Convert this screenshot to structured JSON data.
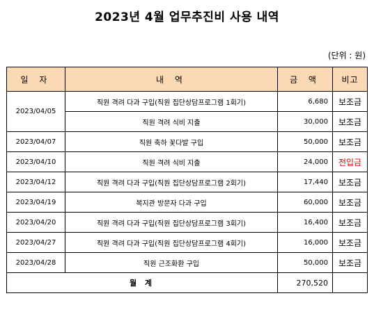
{
  "title": "2023년 4월 업무추진비 사용 내역",
  "unit": "(단위 : 원)",
  "colors": {
    "header_bg": "#fbd9b5",
    "red_note": "#e00000"
  },
  "table": {
    "headers": {
      "date": "일 자",
      "desc": "내 역",
      "amount": "금 액",
      "note": "비고"
    },
    "rows": [
      {
        "date": "2023/04/05",
        "desc": "직원 격려 다과 구입(직원 집단상담프로그램 1회기)",
        "amount": "6,680",
        "note": "보조금"
      },
      {
        "date": "",
        "desc": "직원 격려 식비 지출",
        "amount": "30,000",
        "note": "보조금"
      },
      {
        "date": "2023/04/07",
        "desc": "직원 축하 꽃다발 구입",
        "amount": "50,000",
        "note": "보조금"
      },
      {
        "date": "2023/04/10",
        "desc": "직원 격려 식비 지출",
        "amount": "24,000",
        "note": "전입금"
      },
      {
        "date": "2023/04/12",
        "desc": "직원 격려 다과 구입(직원 집단상담프로그램 2회기)",
        "amount": "17,440",
        "note": "보조금"
      },
      {
        "date": "2023/04/19",
        "desc": "복지관 방문자 다과 구입",
        "amount": "60,000",
        "note": "보조금"
      },
      {
        "date": "2023/04/20",
        "desc": "직원 격려 다과 구입(직원 집단상담프로그램 3회기)",
        "amount": "16,400",
        "note": "보조금"
      },
      {
        "date": "2023/04/27",
        "desc": "직원 격려 다과 구입(직원 집단상담프로그램 4회기)",
        "amount": "16,000",
        "note": "보조금"
      },
      {
        "date": "2023/04/28",
        "desc": "직원 근조화환 구입",
        "amount": "50,000",
        "note": "보조금"
      }
    ],
    "total": {
      "label": "월 계",
      "amount": "270,520",
      "note": ""
    }
  }
}
